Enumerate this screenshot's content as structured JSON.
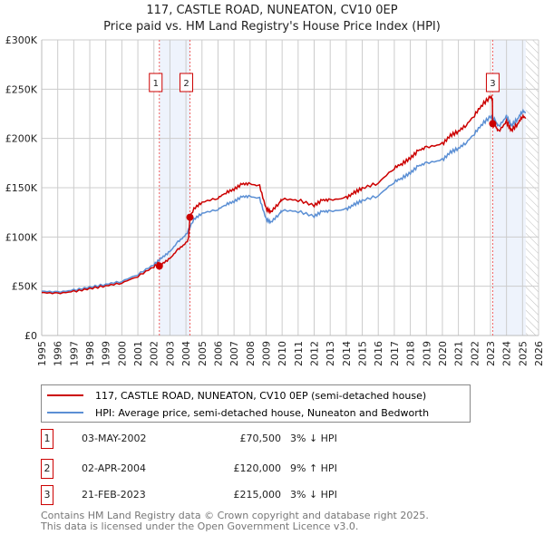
{
  "chart_data": {
    "type": "line",
    "title": "117, CASTLE ROAD, NUNEATON, CV10 0EP",
    "subtitle": "Price paid vs. HM Land Registry's House Price Index (HPI)",
    "xlim": [
      1995,
      2026
    ],
    "ylim": [
      0,
      300000
    ],
    "x_ticks": [
      "1995",
      "1996",
      "1997",
      "1998",
      "1999",
      "2000",
      "2001",
      "2002",
      "2003",
      "2004",
      "2005",
      "2006",
      "2007",
      "2008",
      "2009",
      "2010",
      "2011",
      "2012",
      "2013",
      "2014",
      "2015",
      "2016",
      "2017",
      "2018",
      "2019",
      "2020",
      "2021",
      "2022",
      "2023",
      "2024",
      "2025",
      "2026"
    ],
    "y_ticks": [
      {
        "v": 0,
        "label": "£0"
      },
      {
        "v": 50000,
        "label": "£50K"
      },
      {
        "v": 100000,
        "label": "£100K"
      },
      {
        "v": 150000,
        "label": "£150K"
      },
      {
        "v": 200000,
        "label": "£200K"
      },
      {
        "v": 250000,
        "label": "£250K"
      },
      {
        "v": 300000,
        "label": "£300K"
      }
    ],
    "grid": true,
    "series": [
      {
        "name": "117, CASTLE ROAD, NUNEATON, CV10 0EP (semi-detached house)",
        "color": "#cc0000"
      },
      {
        "name": "HPI: Average price, semi-detached house, Nuneaton and Bedworth",
        "color": "#5b8fd4",
        "x": [
          1995,
          1996,
          1997,
          1998,
          1999,
          2000,
          2001,
          2002,
          2002.5,
          2003,
          2003.5,
          2004,
          2004.5,
          2005,
          2006,
          2006.5,
          2007,
          2007.5,
          2008,
          2008.6,
          2009,
          2009.3,
          2009.8,
          2010,
          2011,
          2012,
          2012.5,
          2013,
          2014,
          2014.5,
          2015,
          2016,
          2017,
          2017.5,
          2018,
          2018.5,
          2019,
          2020,
          2020.5,
          2021,
          2021.5,
          2022,
          2022.5,
          2023,
          2023.3,
          2023.5,
          2024,
          2024.3,
          2024.7,
          2025,
          2025.2
        ],
        "values": [
          45000,
          44000,
          46000,
          49000,
          52000,
          55000,
          62000,
          72000,
          79000,
          85000,
          95000,
          102000,
          118000,
          124000,
          128000,
          133000,
          136000,
          141000,
          141000,
          139000,
          118000,
          115000,
          123000,
          127000,
          126000,
          121000,
          126000,
          126000,
          128000,
          133000,
          137000,
          142000,
          156000,
          160000,
          165000,
          172000,
          175000,
          178000,
          186000,
          190000,
          196000,
          205000,
          215000,
          222000,
          218000,
          212000,
          222000,
          213000,
          220000,
          228000,
          226000
        ]
      }
    ],
    "sales": [
      {
        "id": "1",
        "x": 2002.34,
        "value": 70500,
        "date": "03-MAY-2002",
        "price": "£70,500",
        "hpi": "3% ↓ HPI"
      },
      {
        "id": "2",
        "x": 2004.25,
        "value": 120000,
        "date": "02-APR-2004",
        "price": "£120,000",
        "hpi": "9% ↑ HPI"
      },
      {
        "id": "3",
        "x": 2023.14,
        "value": 215000,
        "date": "21-FEB-2023",
        "price": "£215,000",
        "hpi": "3% ↓ HPI"
      }
    ],
    "shaded": [
      [
        2002.34,
        2004.25
      ],
      [
        2023.14,
        2025.2
      ]
    ],
    "forecast_from": 2025.2
  },
  "footer": [
    "Contains HM Land Registry data © Crown copyright and database right 2025.",
    "This data is licensed under the Open Government Licence v3.0."
  ]
}
